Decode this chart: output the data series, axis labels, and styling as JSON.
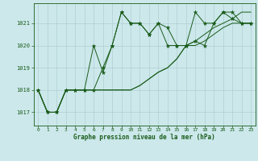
{
  "title": "Graphe pression niveau de la mer (hPa)",
  "background_color": "#cce8eb",
  "line_color": "#1a5c1a",
  "grid_color": "#b0cfd4",
  "xlim": [
    -0.5,
    23.5
  ],
  "ylim": [
    1016.4,
    1021.9
  ],
  "yticks": [
    1017,
    1018,
    1019,
    1020,
    1021
  ],
  "xticks": [
    0,
    1,
    2,
    3,
    4,
    5,
    6,
    7,
    8,
    9,
    10,
    11,
    12,
    13,
    14,
    15,
    16,
    17,
    18,
    19,
    20,
    21,
    22,
    23
  ],
  "series": [
    [
      1018.0,
      1017.0,
      1017.0,
      1018.0,
      1018.0,
      1018.0,
      1020.0,
      1018.8,
      1020.0,
      1021.5,
      1021.0,
      1021.0,
      1020.5,
      1021.0,
      1020.0,
      1020.0,
      1020.0,
      1021.5,
      1021.0,
      1021.0,
      1021.5,
      1021.5,
      1021.0,
      1021.0
    ],
    [
      1018.0,
      1017.0,
      1017.0,
      1018.0,
      1018.0,
      1018.0,
      1018.0,
      1019.0,
      1020.0,
      1021.5,
      1021.0,
      1021.0,
      1020.5,
      1021.0,
      1020.8,
      1020.0,
      1020.0,
      1020.2,
      1020.0,
      1021.0,
      1021.5,
      1021.2,
      1021.0,
      1021.0
    ],
    [
      1018.0,
      1017.0,
      1017.0,
      1018.0,
      1018.0,
      1018.0,
      1018.0,
      1018.0,
      1018.0,
      1018.0,
      1018.0,
      1018.2,
      1018.5,
      1018.8,
      1019.0,
      1019.4,
      1020.0,
      1020.0,
      1020.2,
      1020.5,
      1020.8,
      1021.0,
      1021.0,
      1021.0
    ],
    [
      1018.0,
      1017.0,
      1017.0,
      1018.0,
      1018.0,
      1018.0,
      1018.0,
      1018.0,
      1018.0,
      1018.0,
      1018.0,
      1018.2,
      1018.5,
      1018.8,
      1019.0,
      1019.4,
      1020.0,
      1020.2,
      1020.5,
      1020.8,
      1021.0,
      1021.2,
      1021.5,
      1021.5
    ]
  ],
  "markers": [
    true,
    true,
    false,
    false
  ]
}
